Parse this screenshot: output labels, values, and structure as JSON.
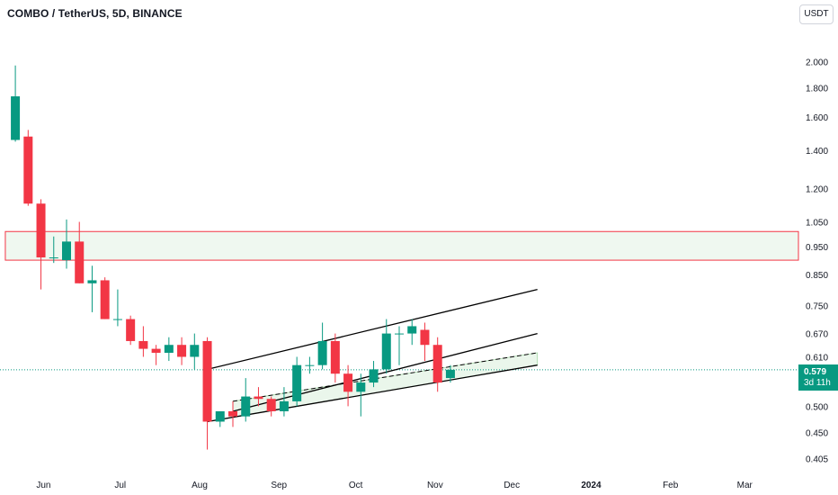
{
  "header": {
    "symbol_title": "COMBO / TetherUS, 5D, BINANCE",
    "currency_button": "USDT"
  },
  "last_price": {
    "value": "0.579",
    "countdown": "3d 11h",
    "numeric": 0.579
  },
  "colors": {
    "up": "#089981",
    "down": "#f23645",
    "zone_fill": "#e8f5e9",
    "zone_border": "#f23645",
    "channel_line": "#000000",
    "axis_text": "#131722",
    "price_line": "#089981"
  },
  "chart_data": {
    "type": "candlestick",
    "symbol": "COMBO / TetherUS",
    "interval": "5D",
    "exchange": "BINANCE",
    "y_scale": "log",
    "ylim": [
      0.39,
      2.3
    ],
    "y_ticks": [
      {
        "label": "2.000",
        "value": 2.0
      },
      {
        "label": "1.800",
        "value": 1.8
      },
      {
        "label": "1.600",
        "value": 1.6
      },
      {
        "label": "1.400",
        "value": 1.4
      },
      {
        "label": "1.200",
        "value": 1.2
      },
      {
        "label": "1.050",
        "value": 1.05
      },
      {
        "label": "0.950",
        "value": 0.95
      },
      {
        "label": "0.850",
        "value": 0.85
      },
      {
        "label": "0.750",
        "value": 0.75
      },
      {
        "label": "0.670",
        "value": 0.67
      },
      {
        "label": "0.610",
        "value": 0.61
      },
      {
        "label": "0.500",
        "value": 0.5
      },
      {
        "label": "0.450",
        "value": 0.45
      },
      {
        "label": "0.405",
        "value": 0.405
      }
    ],
    "x_ticks": [
      {
        "label": "Jun",
        "date": "2023-06-01"
      },
      {
        "label": "Jul",
        "date": "2023-07-01"
      },
      {
        "label": "Aug",
        "date": "2023-08-01"
      },
      {
        "label": "Sep",
        "date": "2023-09-01"
      },
      {
        "label": "Oct",
        "date": "2023-10-01"
      },
      {
        "label": "Nov",
        "date": "2023-11-01"
      },
      {
        "label": "Dec",
        "date": "2023-12-01"
      },
      {
        "label": "2024",
        "date": "2024-01-01",
        "bold": true
      },
      {
        "label": "Feb",
        "date": "2024-02-01"
      },
      {
        "label": "Mar",
        "date": "2024-03-01"
      }
    ],
    "xlim": [
      "2023-05-15",
      "2024-03-22"
    ],
    "candles": [
      {
        "date": "2023-05-21",
        "open": 1.46,
        "high": 1.97,
        "low": 1.45,
        "close": 1.74
      },
      {
        "date": "2023-05-26",
        "open": 1.48,
        "high": 1.52,
        "low": 1.12,
        "close": 1.13
      },
      {
        "date": "2023-05-31",
        "open": 1.13,
        "high": 1.15,
        "low": 0.8,
        "close": 0.91
      },
      {
        "date": "2023-06-05",
        "open": 0.91,
        "high": 0.99,
        "low": 0.89,
        "close": 0.91
      },
      {
        "date": "2023-06-10",
        "open": 0.9,
        "high": 1.06,
        "low": 0.87,
        "close": 0.97
      },
      {
        "date": "2023-06-15",
        "open": 0.97,
        "high": 1.05,
        "low": 0.82,
        "close": 0.82
      },
      {
        "date": "2023-06-20",
        "open": 0.82,
        "high": 0.88,
        "low": 0.73,
        "close": 0.83
      },
      {
        "date": "2023-06-25",
        "open": 0.83,
        "high": 0.84,
        "low": 0.71,
        "close": 0.71
      },
      {
        "date": "2023-06-30",
        "open": 0.71,
        "high": 0.8,
        "low": 0.69,
        "close": 0.71
      },
      {
        "date": "2023-07-05",
        "open": 0.71,
        "high": 0.72,
        "low": 0.64,
        "close": 0.65
      },
      {
        "date": "2023-07-10",
        "open": 0.65,
        "high": 0.69,
        "low": 0.61,
        "close": 0.63
      },
      {
        "date": "2023-07-15",
        "open": 0.63,
        "high": 0.64,
        "low": 0.59,
        "close": 0.62
      },
      {
        "date": "2023-07-20",
        "open": 0.62,
        "high": 0.66,
        "low": 0.6,
        "close": 0.64
      },
      {
        "date": "2023-07-25",
        "open": 0.64,
        "high": 0.66,
        "low": 0.59,
        "close": 0.61
      },
      {
        "date": "2023-07-30",
        "open": 0.61,
        "high": 0.67,
        "low": 0.58,
        "close": 0.64
      },
      {
        "date": "2023-08-04",
        "open": 0.65,
        "high": 0.66,
        "low": 0.42,
        "close": 0.47
      },
      {
        "date": "2023-08-09",
        "open": 0.47,
        "high": 0.49,
        "low": 0.46,
        "close": 0.49
      },
      {
        "date": "2023-08-14",
        "open": 0.49,
        "high": 0.51,
        "low": 0.46,
        "close": 0.48
      },
      {
        "date": "2023-08-19",
        "open": 0.48,
        "high": 0.56,
        "low": 0.47,
        "close": 0.52
      },
      {
        "date": "2023-08-24",
        "open": 0.52,
        "high": 0.54,
        "low": 0.5,
        "close": 0.515
      },
      {
        "date": "2023-08-29",
        "open": 0.515,
        "high": 0.52,
        "low": 0.48,
        "close": 0.49
      },
      {
        "date": "2023-09-03",
        "open": 0.49,
        "high": 0.54,
        "low": 0.48,
        "close": 0.51
      },
      {
        "date": "2023-09-08",
        "open": 0.51,
        "high": 0.61,
        "low": 0.5,
        "close": 0.59
      },
      {
        "date": "2023-09-13",
        "open": 0.59,
        "high": 0.61,
        "low": 0.57,
        "close": 0.59
      },
      {
        "date": "2023-09-18",
        "open": 0.59,
        "high": 0.7,
        "low": 0.58,
        "close": 0.65
      },
      {
        "date": "2023-09-23",
        "open": 0.65,
        "high": 0.67,
        "low": 0.55,
        "close": 0.57
      },
      {
        "date": "2023-09-28",
        "open": 0.57,
        "high": 0.59,
        "low": 0.5,
        "close": 0.53
      },
      {
        "date": "2023-10-03",
        "open": 0.53,
        "high": 0.57,
        "low": 0.48,
        "close": 0.55
      },
      {
        "date": "2023-10-08",
        "open": 0.55,
        "high": 0.6,
        "low": 0.54,
        "close": 0.58
      },
      {
        "date": "2023-10-13",
        "open": 0.58,
        "high": 0.71,
        "low": 0.57,
        "close": 0.67
      },
      {
        "date": "2023-10-18",
        "open": 0.67,
        "high": 0.69,
        "low": 0.59,
        "close": 0.67
      },
      {
        "date": "2023-10-23",
        "open": 0.67,
        "high": 0.71,
        "low": 0.64,
        "close": 0.69
      },
      {
        "date": "2023-10-28",
        "open": 0.68,
        "high": 0.7,
        "low": 0.6,
        "close": 0.64
      },
      {
        "date": "2023-11-02",
        "open": 0.64,
        "high": 0.66,
        "low": 0.53,
        "close": 0.55
      },
      {
        "date": "2023-11-07",
        "open": 0.56,
        "high": 0.59,
        "low": 0.55,
        "close": 0.579
      }
    ],
    "annotations": {
      "resistance_zone": {
        "low": 0.9,
        "high": 1.01,
        "from": "2023-05-15",
        "to": "2024-03-22"
      },
      "channel_lines": [
        {
          "style": "solid",
          "from": {
            "date": "2023-08-04",
            "price": 0.58
          },
          "to": {
            "date": "2023-12-11",
            "price": 0.8
          }
        },
        {
          "style": "solid",
          "from": {
            "date": "2023-08-04",
            "price": 0.47
          },
          "to": {
            "date": "2023-12-11",
            "price": 0.59
          }
        },
        {
          "style": "solid",
          "from": {
            "date": "2023-08-14",
            "price": 0.49
          },
          "to": {
            "date": "2023-12-11",
            "price": 0.67
          }
        },
        {
          "style": "dashed",
          "from": {
            "date": "2023-08-14",
            "price": 0.51
          },
          "to": {
            "date": "2023-12-11",
            "price": 0.62
          }
        }
      ],
      "channel_fill_band": {
        "from": "2023-08-14",
        "to": "2023-12-11"
      }
    }
  }
}
